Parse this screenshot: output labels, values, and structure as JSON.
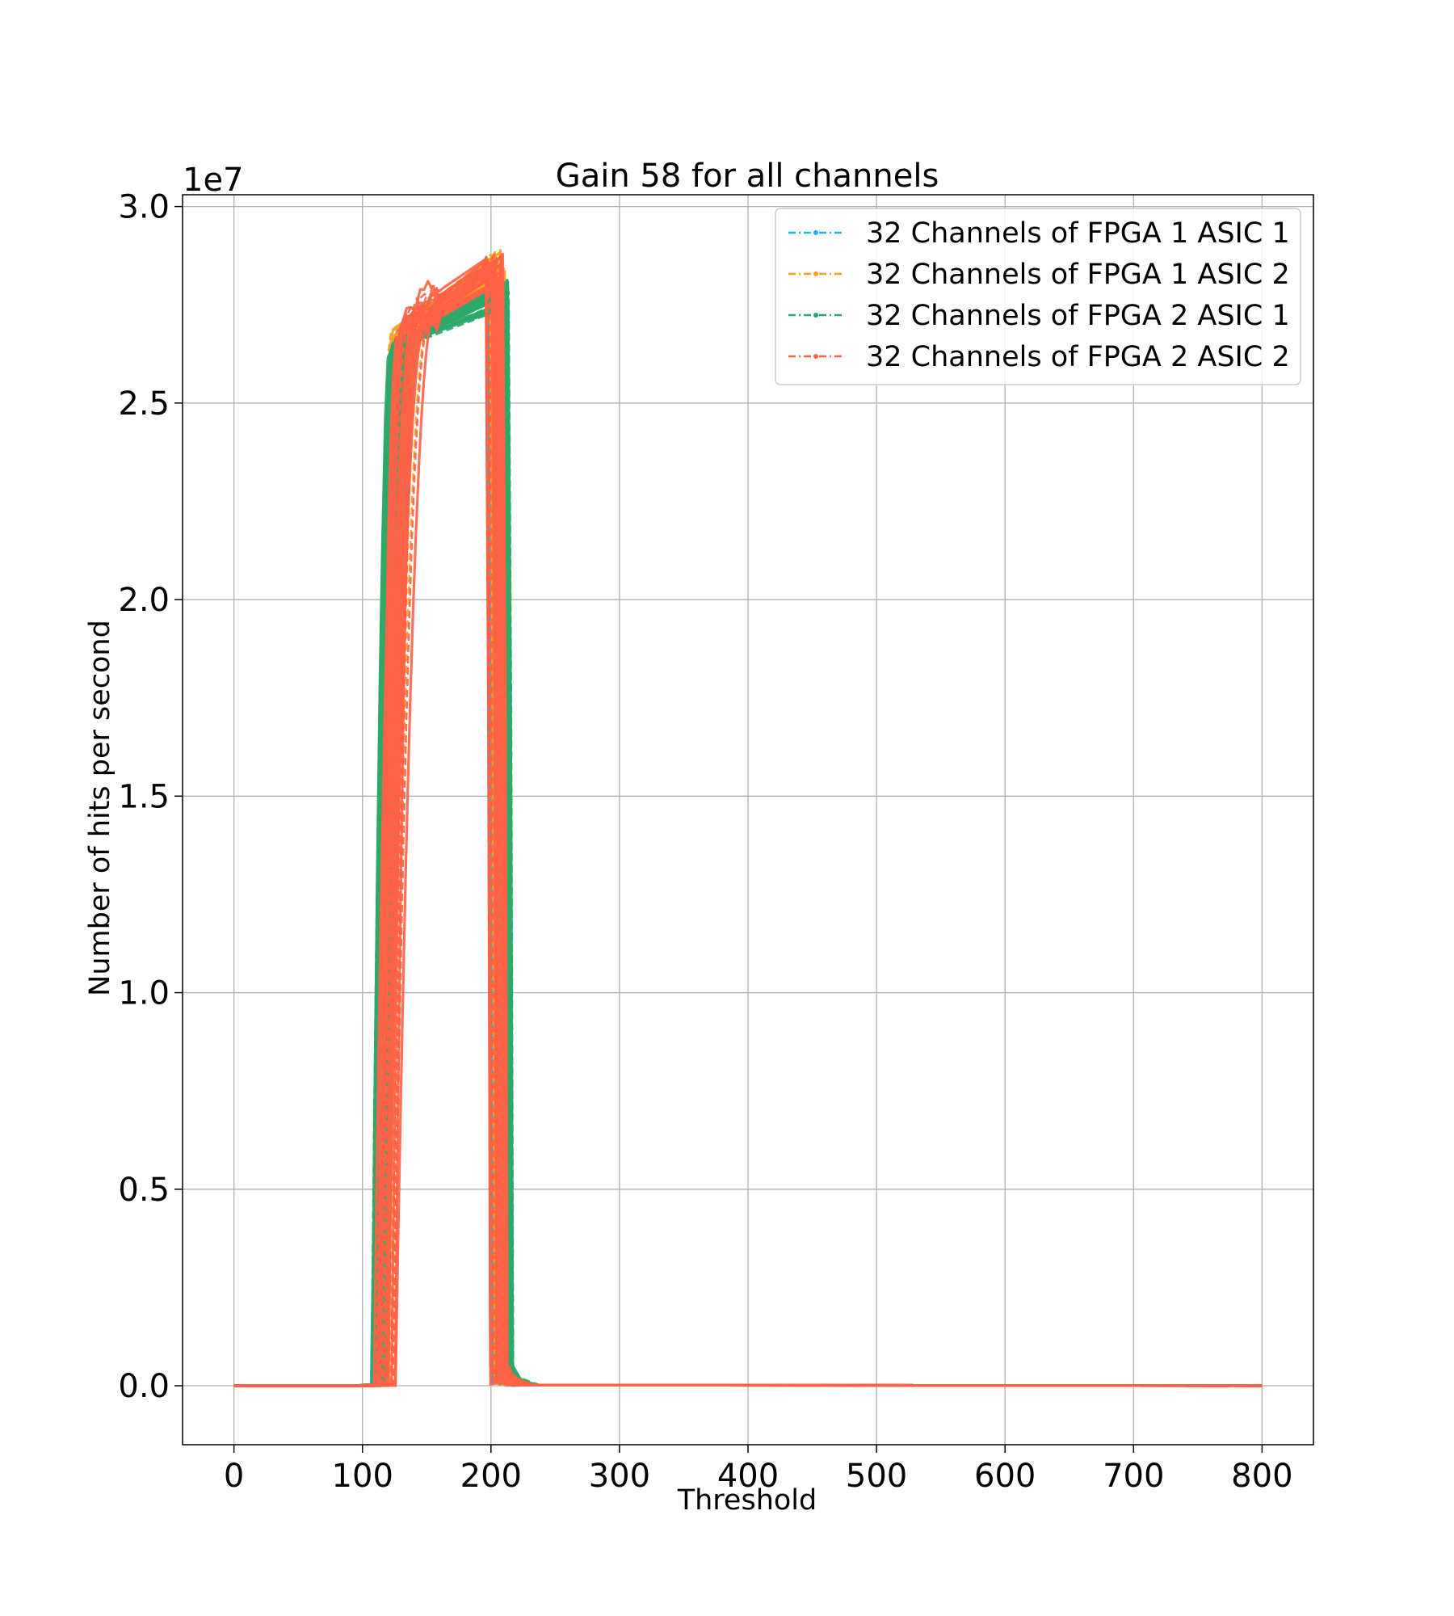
{
  "chart_data": {
    "type": "line",
    "title": "Gain 58 for all channels",
    "xlabel": "Threshold",
    "ylabel": "Number of hits per second",
    "y_offset_text": "1e7",
    "xlim": [
      -40,
      840
    ],
    "ylim": [
      -0.15,
      3.03
    ],
    "y_scale_factor": 10000000,
    "xticks": [
      0,
      100,
      200,
      300,
      400,
      500,
      600,
      700,
      800
    ],
    "xtick_labels": [
      "0",
      "100",
      "200",
      "300",
      "400",
      "500",
      "600",
      "700",
      "800"
    ],
    "yticks": [
      0.0,
      0.5,
      1.0,
      1.5,
      2.0,
      2.5,
      3.0
    ],
    "ytick_labels": [
      "0.0",
      "0.5",
      "1.0",
      "1.5",
      "2.0",
      "2.5",
      "3.0"
    ],
    "grid": true,
    "legend_position": "top-right",
    "series": [
      {
        "name": "32 Channels of FPGA 1 ASIC 1",
        "color": "#1fb4e6",
        "channels": 32,
        "rise_start": 106,
        "rise_spread": 14,
        "rise_width": 22,
        "plateau_start": 2.63,
        "plateau_end": 2.83,
        "fall_at": 204,
        "fall_spread": 6,
        "x_end": 800
      },
      {
        "name": "32 Channels of FPGA 1 ASIC 2",
        "color": "#ff9f1c",
        "channels": 32,
        "rise_start": 107,
        "rise_spread": 16,
        "rise_width": 24,
        "plateau_start": 2.64,
        "plateau_end": 2.85,
        "fall_at": 207,
        "fall_spread": 6,
        "x_end": 800
      },
      {
        "name": "32 Channels of FPGA 2 ASIC 1",
        "color": "#2ca86a",
        "channels": 32,
        "rise_start": 107,
        "rise_spread": 12,
        "rise_width": 20,
        "plateau_start": 2.63,
        "plateau_end": 2.78,
        "fall_at": 210,
        "fall_spread": 6,
        "x_end": 800
      },
      {
        "name": "32 Channels of FPGA 2 ASIC 2",
        "color": "#ff6347",
        "channels": 32,
        "rise_start": 108,
        "rise_spread": 18,
        "rise_width": 26,
        "plateau_start": 2.66,
        "plateau_end": 2.84,
        "fall_at": 205,
        "fall_spread": 7,
        "x_end": 800
      }
    ]
  }
}
